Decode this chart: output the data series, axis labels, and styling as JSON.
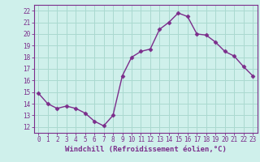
{
  "x": [
    0,
    1,
    2,
    3,
    4,
    5,
    6,
    7,
    8,
    9,
    10,
    11,
    12,
    13,
    14,
    15,
    16,
    17,
    18,
    19,
    20,
    21,
    22,
    23
  ],
  "y": [
    14.9,
    14.0,
    13.6,
    13.8,
    13.6,
    13.2,
    12.5,
    12.1,
    13.0,
    16.4,
    18.0,
    18.5,
    18.7,
    20.4,
    21.0,
    21.8,
    21.5,
    20.0,
    19.9,
    19.3,
    18.5,
    18.1,
    17.2,
    16.4
  ],
  "line_color": "#7B2D8B",
  "marker": "D",
  "marker_size": 2.5,
  "bg_color": "#cff0eb",
  "grid_color": "#aad9d0",
  "xlabel": "Windchill (Refroidissement éolien,°C)",
  "xlabel_color": "#7B2D8B",
  "xlabel_fontsize": 6.5,
  "ylabel_ticks": [
    12,
    13,
    14,
    15,
    16,
    17,
    18,
    19,
    20,
    21,
    22
  ],
  "xlim": [
    -0.5,
    23.5
  ],
  "ylim": [
    11.5,
    22.5
  ],
  "tick_fontsize": 5.5,
  "tick_color": "#7B2D8B",
  "spine_color": "#7B2D8B",
  "linewidth": 1.0
}
